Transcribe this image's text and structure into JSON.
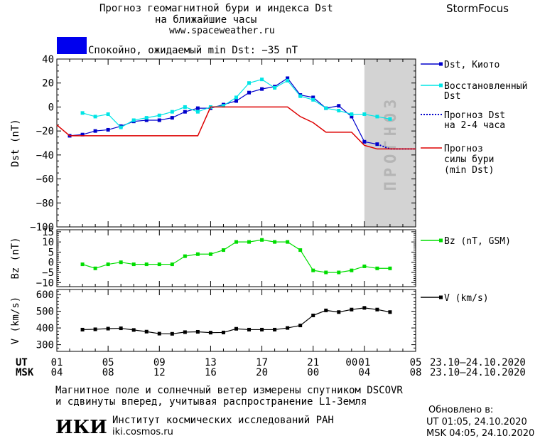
{
  "header": {
    "title_line1": "Прогноз геомагнитной бури и индекса Dst",
    "title_line2": "на ближайшие часы",
    "site": "www.spaceweather.ru",
    "brand": "StormFocus",
    "status_text": "Спокойно, ожидаемый min Dst: −35 nT",
    "status_color": "#0000ee"
  },
  "chart_data": [
    {
      "type": "line",
      "name": "dst",
      "ylabel": "Dst (nT)",
      "ylim": [
        -100,
        40
      ],
      "yticks": [
        40,
        20,
        0,
        -20,
        -40,
        -60,
        -80,
        -100
      ],
      "forecast_band": {
        "x_from": 24,
        "x_to": 28,
        "label": "ПРОГНОЗ",
        "color": "#d3d3d3"
      },
      "series": [
        {
          "name": "Dst, Киото",
          "color": "#0000cc",
          "marker": "square",
          "x": [
            1,
            2,
            3,
            4,
            5,
            6,
            7,
            8,
            9,
            10,
            11,
            12,
            13,
            14,
            15,
            16,
            17,
            18,
            19,
            20,
            21,
            22,
            23,
            24,
            25
          ],
          "y": [
            -24,
            -23,
            -20,
            -19,
            -16,
            -12,
            -11,
            -11,
            -9,
            -4,
            -1,
            -1,
            2,
            5,
            12,
            15,
            17,
            24,
            10,
            8,
            -1,
            1,
            -8,
            -29,
            -31
          ]
        },
        {
          "name": "Восстановленный Dst",
          "color": "#00e5e5",
          "marker": "square",
          "x": [
            2,
            3,
            4,
            5,
            6,
            7,
            8,
            9,
            10,
            11,
            12,
            13,
            14,
            15,
            16,
            17,
            18,
            19,
            20,
            21,
            22,
            23,
            24,
            25,
            26
          ],
          "y": [
            -5,
            -8,
            -6,
            -17,
            -11,
            -9,
            -7,
            -4,
            0,
            -4,
            0,
            1,
            8,
            20,
            23,
            16,
            22,
            9,
            6,
            -1,
            -3,
            -6,
            -6,
            -8,
            -10
          ]
        },
        {
          "name": "Прогноз Dst на 2-4 часа",
          "color": "#0000cc",
          "style": "dotted",
          "x": [
            25,
            26,
            27,
            28
          ],
          "y": [
            -31,
            -35,
            -35,
            -35
          ]
        },
        {
          "name": "Прогноз силы бури (min Dst)",
          "color": "#dd0000",
          "style": "step",
          "x": [
            0,
            1,
            11,
            12,
            18,
            19,
            20,
            21,
            22,
            23,
            24,
            25,
            28
          ],
          "y": [
            -15,
            -24,
            -24,
            0,
            0,
            -8,
            -13,
            -21,
            -21,
            -21,
            -32,
            -35,
            -35
          ]
        }
      ]
    },
    {
      "type": "line",
      "name": "bz",
      "ylabel": "Bz (nT)",
      "ylim": [
        -12,
        16
      ],
      "yticks": [
        15,
        10,
        5,
        0,
        -5,
        -10
      ],
      "series": [
        {
          "name": "Bz (nT, GSM)",
          "color": "#00dd00",
          "marker": "square",
          "x": [
            2,
            3,
            4,
            5,
            6,
            7,
            8,
            9,
            10,
            11,
            12,
            13,
            14,
            15,
            16,
            17,
            18,
            19,
            20,
            21,
            22,
            23,
            24,
            25,
            26
          ],
          "y": [
            -1,
            -3,
            -1,
            0,
            -1,
            -1,
            -1,
            -1,
            3,
            4,
            4,
            6,
            10,
            10,
            11,
            10,
            10,
            6,
            -4,
            -5,
            -5,
            -4,
            -2,
            -3,
            -3
          ]
        }
      ]
    },
    {
      "type": "line",
      "name": "v",
      "ylabel": "V (km/s)",
      "ylim": [
        260,
        630
      ],
      "yticks": [
        600,
        500,
        400,
        300
      ],
      "series": [
        {
          "name": "V (km/s)",
          "color": "#000000",
          "marker": "square",
          "x": [
            2,
            3,
            4,
            5,
            6,
            7,
            8,
            9,
            10,
            11,
            12,
            13,
            14,
            15,
            16,
            17,
            18,
            19,
            20,
            21,
            22,
            23,
            24,
            25,
            26
          ],
          "y": [
            390,
            392,
            396,
            398,
            388,
            378,
            366,
            365,
            375,
            377,
            372,
            373,
            395,
            390,
            390,
            390,
            400,
            415,
            475,
            505,
            495,
            510,
            520,
            510,
            495
          ]
        }
      ]
    }
  ],
  "x_axis": {
    "ut_label": "UT",
    "msk_label": "MSK",
    "ut_ticks": [
      "01",
      "05",
      "09",
      "13",
      "17",
      "21",
      "00",
      "01",
      "05"
    ],
    "msk_ticks": [
      "04",
      "08",
      "12",
      "16",
      "20",
      "00",
      "04",
      "08"
    ],
    "ut_range": "23.10–24.10.2020",
    "msk_range": "23.10–24.10.2020"
  },
  "legend": {
    "dst_kyoto": "Dst, Киото",
    "restored_1": "Восстановленный",
    "restored_2": "Dst",
    "forecast_1": "Прогноз Dst",
    "forecast_2": "на 2-4 часа",
    "storm_1": "Прогноз",
    "storm_2": "силы бури",
    "storm_3": "(min Dst)",
    "bz": "Bz (nT, GSM)",
    "v": "V (km/s)"
  },
  "footer": {
    "note_line1": "Магнитное поле и солнечный ветер измерены спутником DSCOVR",
    "note_line2": "и сдвинуты вперед, учитывая распространение L1-Земля",
    "logo_text": "ИКИ",
    "institute": "Институт космических исследований РАН",
    "institute_site": "iki.cosmos.ru",
    "updated_label": "Обновлено в:",
    "updated_ut": "UT  01:05, 24.10.2020",
    "updated_msk": "MSK 04:05, 24.10.2020"
  }
}
